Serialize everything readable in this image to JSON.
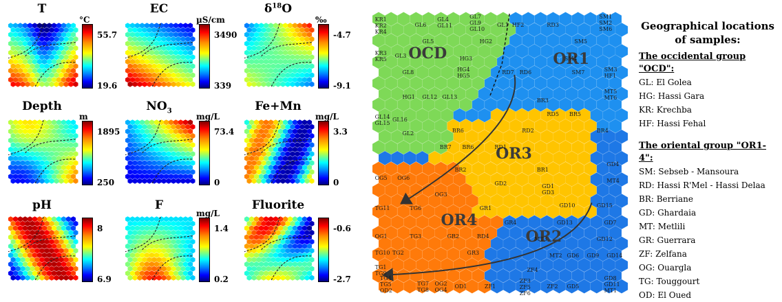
{
  "panels": [
    {
      "title": "T",
      "unit": "°C",
      "max": "55.7",
      "min": "19.6",
      "scheme": "t"
    },
    {
      "title": "EC",
      "unit": "µS/cm",
      "max": "3490",
      "min": "339",
      "scheme": "ec"
    },
    {
      "title": "δ18O",
      "unit": "‰",
      "max": "-4.7",
      "min": "-9.1",
      "scheme": "o18"
    },
    {
      "title": "Depth",
      "unit": "m",
      "max": "1895",
      "min": "250",
      "scheme": "depth"
    },
    {
      "title": "NO3",
      "unit": "mg/L",
      "max": "73.4",
      "min": "0",
      "scheme": "no3"
    },
    {
      "title": "Fe+Mn",
      "unit": "mg/L",
      "max": "3.3",
      "min": "0",
      "scheme": "femn"
    },
    {
      "title": "pH",
      "unit": "",
      "max": "8",
      "min": "6.9",
      "scheme": "ph"
    },
    {
      "title": "F",
      "unit": "mg/L",
      "max": "1.4",
      "min": "0.2",
      "scheme": "f"
    },
    {
      "title": "Fluorite",
      "unit": "",
      "max": "-0.6",
      "min": "-2.7",
      "scheme": "fluorite"
    }
  ],
  "groups": [
    {
      "name": "OCD",
      "color": "#7ed957"
    },
    {
      "name": "OR1",
      "color": "#1e90f0"
    },
    {
      "name": "OR2",
      "color": "#1e78e6"
    },
    {
      "name": "OR3",
      "color": "#ffc400"
    },
    {
      "name": "OR4",
      "color": "#ff7a0a"
    }
  ],
  "sample_labels": [
    {
      "text": "KR1\nKR2\nKR4",
      "g": "OCD"
    },
    {
      "text": "GL6",
      "g": "OCD"
    },
    {
      "text": "GL4\nGL11",
      "g": "OCD"
    },
    {
      "text": "GL7\nGL9\nGL10",
      "g": "OCD"
    },
    {
      "text": "GL1",
      "g": "OCD"
    },
    {
      "text": "GL5",
      "g": "OCD"
    },
    {
      "text": "HG2",
      "g": "OCD"
    },
    {
      "text": "KR3\nKR5",
      "g": "OCD"
    },
    {
      "text": "GL3",
      "g": "OCD"
    },
    {
      "text": "HG3",
      "g": "OCD"
    },
    {
      "text": "GL8",
      "g": "OCD"
    },
    {
      "text": "HG4\nHG5",
      "g": "OCD"
    },
    {
      "text": "HG1",
      "g": "OCD"
    },
    {
      "text": "GL12",
      "g": "OCD"
    },
    {
      "text": "GL13",
      "g": "OCD"
    },
    {
      "text": "GL14\nGL15",
      "g": "OCD"
    },
    {
      "text": "GL16",
      "g": "OCD"
    },
    {
      "text": "GL2",
      "g": "OCD"
    },
    {
      "text": "HF2",
      "g": "OR1"
    },
    {
      "text": "RD3",
      "g": "OR1"
    },
    {
      "text": "SM1\nSM2\nSM6",
      "g": "OR1"
    },
    {
      "text": "SM5",
      "g": "OR1"
    },
    {
      "text": "SM4",
      "g": "OR1"
    },
    {
      "text": "RD7",
      "g": "OR1"
    },
    {
      "text": "RD6",
      "g": "OR1"
    },
    {
      "text": "SM7",
      "g": "OR1"
    },
    {
      "text": "SM3\nHF1",
      "g": "OR1"
    },
    {
      "text": "MT5\nMT6",
      "g": "OR1"
    },
    {
      "text": "BR3",
      "g": "OR1"
    },
    {
      "text": "RD5",
      "g": "OR1"
    },
    {
      "text": "BR5",
      "g": "OR1"
    },
    {
      "text": "BR4",
      "g": "OR1"
    },
    {
      "text": "BR6",
      "g": "OR3"
    },
    {
      "text": "RD2",
      "g": "OR3"
    },
    {
      "text": "BR7",
      "g": "OR3"
    },
    {
      "text": "BR6",
      "g": "OR3"
    },
    {
      "text": "RD1",
      "g": "OR3"
    },
    {
      "text": "BR2",
      "g": "OR3"
    },
    {
      "text": "BR1",
      "g": "OR3"
    },
    {
      "text": "GD2",
      "g": "OR3"
    },
    {
      "text": "GD1\nGD3",
      "g": "OR3"
    },
    {
      "text": "GD4",
      "g": "OR2"
    },
    {
      "text": "MT4",
      "g": "OR2"
    },
    {
      "text": "GD10",
      "g": "OR2"
    },
    {
      "text": "GD15",
      "g": "OR2"
    },
    {
      "text": "GR4",
      "g": "OR2"
    },
    {
      "text": "GD13",
      "g": "OR2"
    },
    {
      "text": "GD7",
      "g": "OR2"
    },
    {
      "text": "MT3",
      "g": "OR2"
    },
    {
      "text": "GD12",
      "g": "OR2"
    },
    {
      "text": "MT2",
      "g": "OR2"
    },
    {
      "text": "GD6",
      "g": "OR2"
    },
    {
      "text": "GD9",
      "g": "OR2"
    },
    {
      "text": "GD14",
      "g": "OR2"
    },
    {
      "text": "ZF4",
      "g": "OR2"
    },
    {
      "text": "ZF3\nZF5\nZF6",
      "g": "OR2"
    },
    {
      "text": "ZF2",
      "g": "OR2"
    },
    {
      "text": "GD5",
      "g": "OR2"
    },
    {
      "text": "GD8\nGD11\nMT1",
      "g": "OR2"
    },
    {
      "text": "OG5",
      "g": "OR4"
    },
    {
      "text": "OG6",
      "g": "OR4"
    },
    {
      "text": "OG3",
      "g": "OR4"
    },
    {
      "text": "TG11",
      "g": "OR4"
    },
    {
      "text": "TG6",
      "g": "OR4"
    },
    {
      "text": "GR1",
      "g": "OR4"
    },
    {
      "text": "OG1",
      "g": "OR4"
    },
    {
      "text": "TG3",
      "g": "OR4"
    },
    {
      "text": "GR2",
      "g": "OR4"
    },
    {
      "text": "RD4",
      "g": "OR4"
    },
    {
      "text": "TG10",
      "g": "OR4"
    },
    {
      "text": "TG2",
      "g": "OR4"
    },
    {
      "text": "GR3",
      "g": "OR4"
    },
    {
      "text": "TG1\nTG9",
      "g": "OR4"
    },
    {
      "text": "TG4\nTG5\nOD2",
      "g": "OR4"
    },
    {
      "text": "TG7\nTG8",
      "g": "OR4"
    },
    {
      "text": "OG2\nOG4",
      "g": "OR4"
    },
    {
      "text": "OD1",
      "g": "OR4"
    },
    {
      "text": "ZF1",
      "g": "OR4"
    }
  ],
  "legend": {
    "title": "Geographical locations of samples:",
    "occidental_header": "The occidental group \"OCD\":",
    "occidental": [
      "GL: El Golea",
      "HG: Hassi Gara",
      "KR: Krechba",
      "HF: Hassi Fehal"
    ],
    "oriental_header": "The oriental group \"OR1-4\":",
    "oriental": [
      "SM: Sebseb - Mansoura",
      "RD: Hassi R'Mel - Hassi Delaa",
      "BR: Berriane",
      "GD: Ghardaia",
      "MT: Metlili",
      "GR: Guerrara",
      "ZF: Zelfana",
      "OG: Ouargla",
      "TG: Touggourt",
      "OD: El Oued"
    ]
  }
}
